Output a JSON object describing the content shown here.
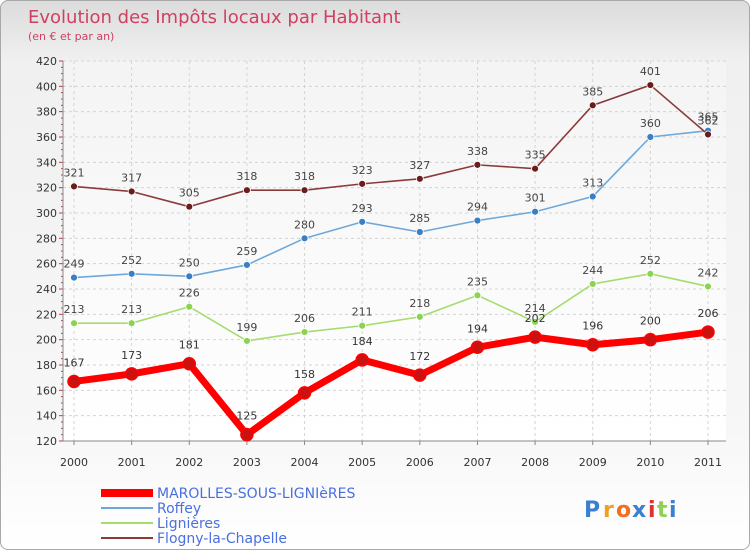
{
  "chart_data": {
    "type": "line",
    "title": "Evolution des Impôts locaux par Habitant",
    "subtitle": "(en € et par an)",
    "x": [
      "2000",
      "2001",
      "2002",
      "2003",
      "2004",
      "2005",
      "2006",
      "2007",
      "2008",
      "2009",
      "2010",
      "2011"
    ],
    "ylim": [
      120,
      420
    ],
    "yticks": [
      120,
      140,
      160,
      180,
      200,
      220,
      240,
      260,
      280,
      300,
      320,
      340,
      360,
      380,
      400,
      420
    ],
    "grid": true,
    "legend_position": "bottom-left",
    "series": [
      {
        "name": "MAROLLES-SOUS-LIGNIèRES",
        "color": "#ff0000",
        "point_color": "#cc1111",
        "label_color": "#333333",
        "emphasis": true,
        "values": [
          167,
          173,
          181,
          125,
          158,
          184,
          172,
          194,
          202,
          196,
          200,
          206
        ]
      },
      {
        "name": "Roffey",
        "color": "#6fa8d8",
        "point_color": "#3a7fc1",
        "label_color": "#444444",
        "emphasis": false,
        "values": [
          249,
          252,
          250,
          259,
          280,
          293,
          285,
          294,
          301,
          313,
          360,
          365
        ]
      },
      {
        "name": "Lignières",
        "color": "#a6dc6e",
        "point_color": "#8dd252",
        "label_color": "#444444",
        "emphasis": false,
        "values": [
          213,
          213,
          226,
          199,
          206,
          211,
          218,
          235,
          214,
          244,
          252,
          242
        ]
      },
      {
        "name": "Flogny-la-Chapelle",
        "color": "#8b3a3a",
        "point_color": "#6b1c1c",
        "label_color": "#444444",
        "emphasis": false,
        "values": [
          321,
          317,
          305,
          318,
          318,
          323,
          327,
          338,
          335,
          385,
          401,
          362
        ]
      }
    ]
  },
  "legend_text_color": "#4a6fe0",
  "title_color": "#d04060",
  "watermark": {
    "text": "Proxiti",
    "letters": [
      "P",
      "r",
      "o",
      "x",
      "i",
      "t",
      "i"
    ],
    "colors": [
      "#3a7fd0",
      "#f0a020",
      "#f07020",
      "#3a7fd0",
      "#e03030",
      "#8dd252",
      "#3a7fd0"
    ]
  }
}
